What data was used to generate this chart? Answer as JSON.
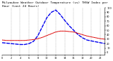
{
  "title": "Milwaukee Weather Outdoor Temperature (vs) THSW Index per Hour (Last 24 Hours)",
  "title_fontsize": 3.2,
  "figsize": [
    1.6,
    0.87
  ],
  "dpi": 100,
  "background_color": "#ffffff",
  "grid_color": "#888888",
  "hours": [
    0,
    1,
    2,
    3,
    4,
    5,
    6,
    7,
    8,
    9,
    10,
    11,
    12,
    13,
    14,
    15,
    16,
    17,
    18,
    19,
    20,
    21,
    22,
    23
  ],
  "temp_outdoor": [
    28,
    27,
    27,
    27,
    27,
    27,
    28,
    29,
    31,
    34,
    38,
    42,
    46,
    48,
    48,
    47,
    46,
    43,
    40,
    37,
    35,
    33,
    31,
    30
  ],
  "thsw_index": [
    22,
    21,
    20,
    19,
    18,
    18,
    20,
    25,
    38,
    58,
    78,
    90,
    95,
    85,
    72,
    60,
    50,
    40,
    33,
    28,
    26,
    24,
    22,
    20
  ],
  "temp_color": "#dd0000",
  "thsw_color": "#0000ee",
  "temp_linewidth": 0.8,
  "thsw_linewidth": 1.0,
  "ylim": [
    -5,
    100
  ],
  "xlim": [
    0,
    23
  ],
  "yticks": [
    0,
    10,
    20,
    30,
    40,
    50,
    60,
    70,
    80,
    90,
    100
  ],
  "ytick_labels": [
    "0",
    "10",
    "20",
    "30",
    "40",
    "50",
    "60",
    "70",
    "80",
    "90",
    "100"
  ],
  "xtick_positions": [
    0,
    2,
    4,
    6,
    8,
    10,
    12,
    14,
    16,
    18,
    20,
    22
  ],
  "xtick_labels": [
    "0",
    "2",
    "4",
    "6",
    "8",
    "10",
    "12",
    "14",
    "16",
    "18",
    "20",
    "22"
  ],
  "vgrid_positions": [
    2,
    4,
    6,
    8,
    10,
    12,
    14,
    16,
    18,
    20,
    22
  ]
}
